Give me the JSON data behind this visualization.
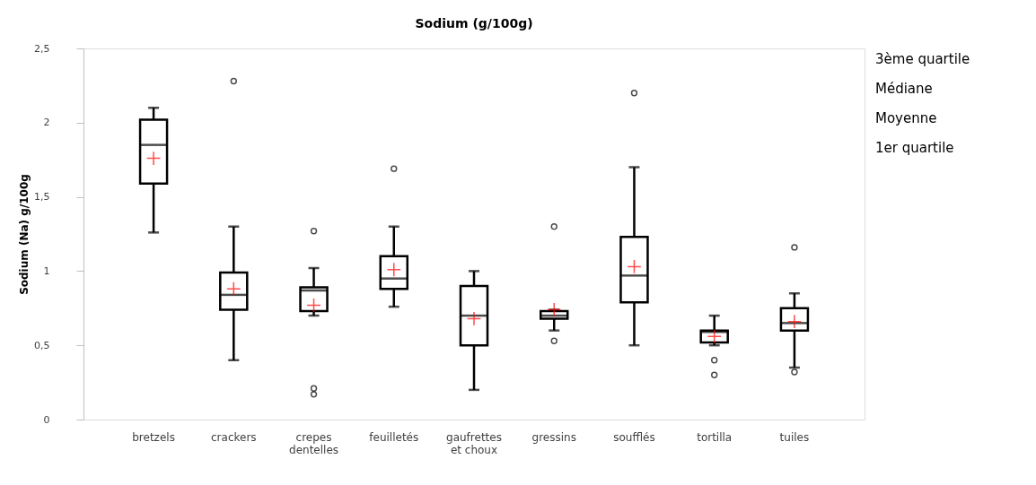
{
  "chart_data": {
    "type": "box",
    "title": "Sodium (g/100g)",
    "ylabel": "Sodium (Na) g/100g",
    "categories": [
      "bretzels",
      "crackers",
      "crepes\ndentelles",
      "feuilletés",
      "gaufrettes\net choux",
      "gressins",
      "soufflés",
      "tortilla",
      "tuiles"
    ],
    "boxes": [
      {
        "low": 1.26,
        "q1": 1.59,
        "median": 1.85,
        "q3": 2.02,
        "high": 2.1,
        "mean": 1.76
      },
      {
        "low": 0.4,
        "q1": 0.74,
        "median": 0.84,
        "q3": 0.99,
        "high": 1.3,
        "mean": 0.88,
        "outliers": [
          2.28
        ]
      },
      {
        "low": 0.7,
        "q1": 0.73,
        "median": 0.87,
        "q3": 0.89,
        "high": 1.02,
        "mean": 0.77,
        "outliers": [
          1.27,
          0.21,
          0.17
        ]
      },
      {
        "low": 0.76,
        "q1": 0.88,
        "median": 0.95,
        "q3": 1.1,
        "high": 1.3,
        "mean": 1.01,
        "outliers": [
          1.69
        ]
      },
      {
        "low": 0.2,
        "q1": 0.5,
        "median": 0.7,
        "q3": 0.9,
        "high": 1.0,
        "mean": 0.68
      },
      {
        "low": 0.6,
        "q1": 0.68,
        "median": 0.7,
        "q3": 0.73,
        "high": 0.74,
        "mean": 0.74,
        "outliers": [
          1.3,
          0.53
        ]
      },
      {
        "low": 0.5,
        "q1": 0.79,
        "median": 0.97,
        "q3": 1.23,
        "high": 1.7,
        "mean": 1.03,
        "outliers": [
          2.2
        ]
      },
      {
        "low": 0.5,
        "q1": 0.52,
        "median": 0.59,
        "q3": 0.6,
        "high": 0.7,
        "mean": 0.56,
        "outliers": [
          0.4,
          0.3
        ]
      },
      {
        "low": 0.35,
        "q1": 0.6,
        "median": 0.65,
        "q3": 0.75,
        "high": 0.85,
        "mean": 0.66,
        "outliers": [
          1.16,
          0.32
        ]
      }
    ],
    "color": "#000000",
    "ylim": [
      0,
      2.5
    ],
    "yticks": [
      0,
      {
        "value": 0.5,
        "label": "0,5"
      },
      1,
      {
        "value": 1.5,
        "label": "1,5"
      },
      2,
      {
        "value": 2.5,
        "label": "2,5"
      }
    ],
    "grid": false,
    "annotations": [
      "3ème quartile",
      "Médiane",
      "Moyenne",
      "1er quartile"
    ]
  }
}
